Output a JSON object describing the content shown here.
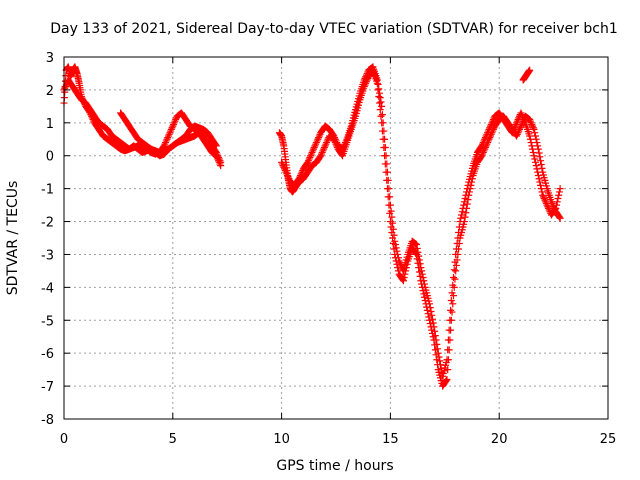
{
  "chart_data": {
    "type": "scatter",
    "title": "Day 133 of 2021, Sidereal Day-to-day VTEC variation (SDTVAR) for receiver bch1",
    "xlabel": "GPS time / hours",
    "ylabel": "SDTVAR / TECUs",
    "xlim": [
      0,
      25
    ],
    "ylim": [
      -8,
      3
    ],
    "xticks": [
      "0",
      "5",
      "10",
      "15",
      "20",
      "25"
    ],
    "yticks": [
      "3",
      "2",
      "1",
      "0",
      "-1",
      "-2",
      "-3",
      "-4",
      "-5",
      "-6",
      "-7",
      "-8"
    ],
    "grid": true,
    "marker": "plus",
    "color": "#ff0000",
    "series": [
      {
        "x": [
          0.0,
          0.1,
          0.2,
          0.3,
          0.4,
          0.5,
          0.6,
          0.7,
          0.8,
          1.0,
          1.2,
          1.4,
          1.6,
          1.8,
          2.0,
          2.2,
          2.4,
          2.6,
          2.8,
          3.0,
          3.2,
          3.4,
          3.6,
          3.8,
          4.0,
          4.2,
          4.4,
          4.6,
          4.8,
          5.0,
          5.2,
          5.4,
          5.6,
          5.8,
          6.0,
          6.2,
          6.4,
          6.6,
          6.8,
          7.0,
          7.2
        ],
        "y": [
          1.6,
          2.6,
          2.7,
          2.4,
          2.6,
          2.7,
          2.5,
          2.2,
          1.8,
          1.5,
          1.3,
          1.0,
          0.8,
          0.6,
          0.5,
          0.4,
          0.3,
          0.2,
          0.15,
          0.2,
          0.3,
          0.2,
          0.1,
          0.15,
          0.2,
          0.1,
          0.0,
          0.05,
          0.2,
          0.3,
          0.4,
          0.45,
          0.5,
          0.55,
          0.6,
          0.7,
          0.6,
          0.4,
          0.3,
          0.1,
          -0.2
        ]
      },
      {
        "x": [
          0.0,
          0.2,
          0.4,
          0.6,
          0.8,
          1.0,
          1.2,
          1.4,
          1.6,
          1.8,
          2.0,
          2.2,
          2.4,
          2.6,
          2.8,
          3.0,
          3.2,
          3.4,
          3.6,
          3.8,
          4.0,
          4.2,
          4.4,
          4.6,
          4.8,
          5.0,
          5.2,
          5.4,
          5.6,
          5.8,
          6.0,
          6.2,
          6.4,
          6.6,
          6.8,
          7.0,
          7.2
        ],
        "y": [
          2.0,
          2.3,
          2.1,
          1.9,
          1.7,
          1.6,
          1.4,
          1.2,
          1.0,
          0.9,
          0.8,
          0.6,
          0.5,
          0.4,
          0.3,
          0.2,
          0.25,
          0.3,
          0.25,
          0.2,
          0.1,
          0.05,
          0.1,
          0.3,
          0.6,
          0.9,
          1.2,
          1.3,
          1.1,
          0.9,
          0.8,
          0.7,
          0.5,
          0.3,
          0.1,
          0.0,
          -0.3
        ]
      },
      {
        "x": [
          2.6,
          2.8,
          3.0,
          3.2,
          3.4,
          3.6,
          3.8,
          4.0,
          4.2,
          4.4,
          4.6,
          4.8,
          5.0,
          5.2,
          5.4,
          5.6,
          5.8,
          6.0,
          6.2,
          6.4,
          6.6,
          6.8,
          7.0
        ],
        "y": [
          1.3,
          1.1,
          0.9,
          0.7,
          0.5,
          0.4,
          0.3,
          0.2,
          0.15,
          0.1,
          0.15,
          0.2,
          0.3,
          0.4,
          0.5,
          0.6,
          0.8,
          0.9,
          0.85,
          0.8,
          0.7,
          0.5,
          0.3
        ]
      },
      {
        "x": [
          9.9,
          10.0,
          10.1,
          10.2,
          10.3,
          10.4,
          10.5,
          10.6,
          10.8,
          11.0,
          11.2,
          11.4,
          11.6,
          11.8,
          12.0,
          12.2,
          12.4,
          12.6,
          12.8,
          13.0,
          13.2,
          13.4,
          13.6,
          13.8,
          14.0,
          14.2,
          14.4,
          14.6,
          14.8,
          15.0,
          15.2,
          15.4,
          15.6,
          15.8,
          16.0,
          16.2,
          16.4,
          16.6,
          16.8,
          17.0,
          17.2,
          17.4,
          17.6,
          17.8,
          18.0,
          18.2,
          18.4,
          18.6,
          18.8,
          19.0,
          19.2,
          19.4,
          19.6,
          19.8,
          20.0,
          20.2,
          20.4,
          20.6,
          20.8,
          21.0,
          21.2,
          21.4,
          21.6,
          21.8,
          22.0,
          22.2,
          22.4,
          22.6,
          22.8
        ],
        "y": [
          0.7,
          0.6,
          0.3,
          -0.2,
          -0.7,
          -1.0,
          -1.1,
          -1.0,
          -0.8,
          -0.7,
          -0.5,
          -0.3,
          -0.2,
          0.0,
          0.3,
          0.6,
          0.5,
          0.2,
          0.0,
          0.4,
          0.8,
          1.2,
          1.7,
          2.1,
          2.4,
          2.6,
          2.2,
          1.0,
          -0.5,
          -2.0,
          -3.0,
          -3.6,
          -3.8,
          -3.2,
          -2.8,
          -3.0,
          -3.8,
          -4.4,
          -5.0,
          -5.6,
          -6.5,
          -7.0,
          -6.8,
          -5.0,
          -3.5,
          -2.5,
          -2.0,
          -1.2,
          -0.6,
          -0.2,
          0.0,
          0.3,
          0.6,
          0.9,
          1.1,
          1.2,
          1.0,
          0.8,
          0.6,
          0.9,
          1.2,
          1.1,
          0.8,
          0.2,
          -0.5,
          -1.0,
          -1.4,
          -1.7,
          -1.9
        ]
      },
      {
        "x": [
          10.0,
          10.2,
          10.4,
          10.6,
          10.8,
          11.0,
          11.2,
          11.4,
          11.6,
          11.8,
          12.0,
          12.2,
          12.4,
          12.6,
          12.8,
          13.0,
          13.2,
          13.4,
          13.6,
          13.8,
          14.0,
          14.2,
          14.4,
          14.6,
          14.8,
          15.0,
          15.2,
          15.4,
          15.6,
          15.8,
          16.0,
          16.2,
          16.4,
          16.6,
          16.8,
          17.0,
          17.2,
          17.4,
          17.6,
          17.8,
          18.0,
          18.2,
          18.4,
          18.6,
          18.8,
          19.0,
          19.2,
          19.4,
          19.6,
          19.8,
          20.0,
          20.2,
          20.4,
          20.6,
          20.8,
          21.0,
          21.2,
          21.4,
          21.6,
          21.8,
          22.0,
          22.2,
          22.4,
          22.6,
          22.8
        ],
        "y": [
          -0.2,
          -0.5,
          -0.8,
          -0.9,
          -0.7,
          -0.4,
          -0.2,
          0.1,
          0.4,
          0.7,
          0.9,
          0.8,
          0.6,
          0.3,
          0.2,
          0.5,
          0.9,
          1.4,
          1.9,
          2.3,
          2.6,
          2.7,
          2.3,
          1.5,
          0.0,
          -1.5,
          -2.6,
          -3.2,
          -3.5,
          -3.0,
          -2.6,
          -2.7,
          -3.4,
          -4.0,
          -4.5,
          -5.2,
          -6.0,
          -6.7,
          -6.2,
          -4.4,
          -3.0,
          -2.0,
          -1.4,
          -0.8,
          -0.3,
          0.1,
          0.3,
          0.6,
          0.9,
          1.2,
          1.3,
          1.1,
          0.9,
          0.7,
          1.0,
          1.3,
          1.0,
          0.6,
          0.0,
          -0.6,
          -1.2,
          -1.5,
          -1.8,
          -1.6,
          -1.0
        ]
      },
      {
        "x": [
          21.1,
          21.2,
          21.3,
          21.4
        ],
        "y": [
          2.3,
          2.4,
          2.5,
          2.6
        ]
      }
    ]
  }
}
